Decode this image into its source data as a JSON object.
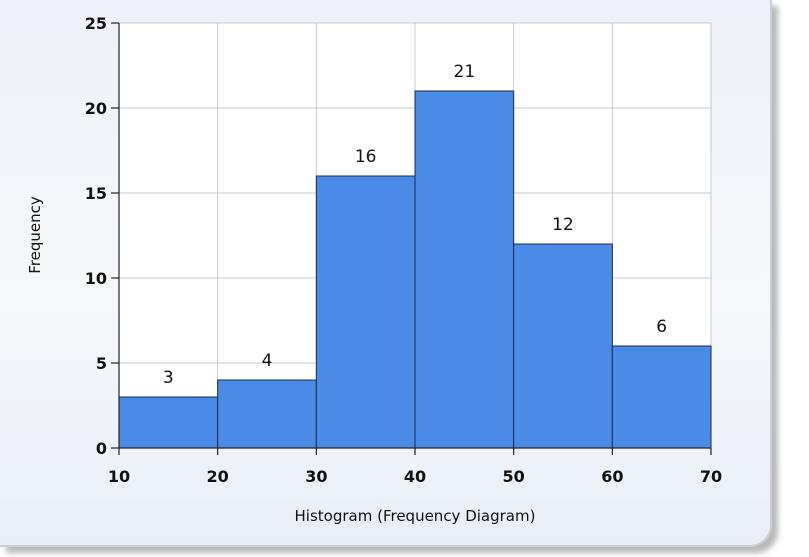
{
  "chart_data": {
    "type": "bar",
    "xlabel": "Histogram (Frequency Diagram)",
    "ylabel": "Frequency",
    "bins": [
      {
        "from": 10,
        "to": 20,
        "value": 3
      },
      {
        "from": 20,
        "to": 30,
        "value": 4
      },
      {
        "from": 30,
        "to": 40,
        "value": 16
      },
      {
        "from": 40,
        "to": 50,
        "value": 21
      },
      {
        "from": 50,
        "to": 60,
        "value": 12
      },
      {
        "from": 60,
        "to": 70,
        "value": 6
      }
    ],
    "xlim": [
      10,
      70
    ],
    "ylim": [
      0,
      25
    ],
    "x_ticks": [
      10,
      20,
      30,
      40,
      50,
      60,
      70
    ],
    "y_ticks": [
      0,
      5,
      10,
      15,
      20,
      25
    ],
    "grid": true,
    "colors": {
      "bar": "#4a8be8",
      "bar_edge": "#1e2a44",
      "grid": "#c8c8c8"
    }
  }
}
